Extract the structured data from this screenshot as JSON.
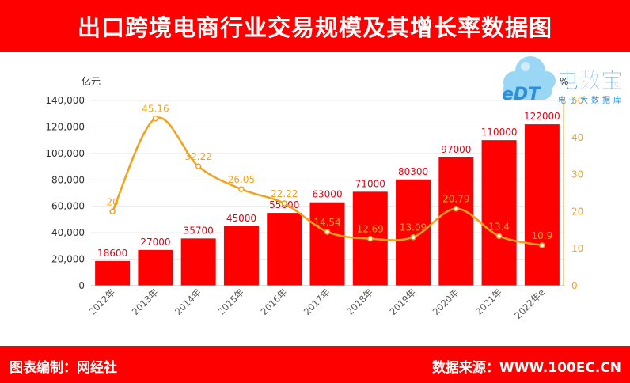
{
  "chart_data": {
    "type": "bar",
    "title": "出口跨境电商行业交易规模及其增长率数据图",
    "categories": [
      "2012年",
      "2013年",
      "2014年",
      "2015年",
      "2016年",
      "2017年",
      "2018年",
      "2019年",
      "2020年",
      "2021年",
      "2022年e"
    ],
    "ylabel": "亿元",
    "y2label": "%",
    "ylim": [
      0,
      140000
    ],
    "y2lim": [
      0,
      50
    ],
    "yticks": [
      "0",
      "20,000",
      "40,000",
      "60,000",
      "80,000",
      "100,000",
      "120,000",
      "140,000"
    ],
    "y2ticks": [
      "0",
      "10",
      "20",
      "30",
      "40",
      "50"
    ],
    "grid": true,
    "series": [
      {
        "type": "bar",
        "axis": "left",
        "values": [
          18600,
          27000,
          35700,
          45000,
          55000,
          63000,
          71000,
          80300,
          97000,
          110000,
          122000
        ]
      },
      {
        "type": "line",
        "axis": "right",
        "smooth": true,
        "values": [
          20,
          45.16,
          32.22,
          26.05,
          22.22,
          14.54,
          12.69,
          13.09,
          20.79,
          13.4,
          10.9
        ]
      }
    ]
  },
  "logo": {
    "name": "电数宝",
    "mark": "eDT",
    "subtitle": "电子大数据库"
  },
  "footer": {
    "compiled_by": "图表编制：网经社",
    "source": "数据来源：WWW.100EC.CN"
  },
  "colors": {
    "banner": "#ff0000",
    "bar": "#ff0000",
    "bar_label": "#e60012",
    "line": "#f5a01a",
    "grid": "#e8e8e8",
    "logo": "#2b8fdc",
    "logo_cloud": "#8fd3f5"
  }
}
